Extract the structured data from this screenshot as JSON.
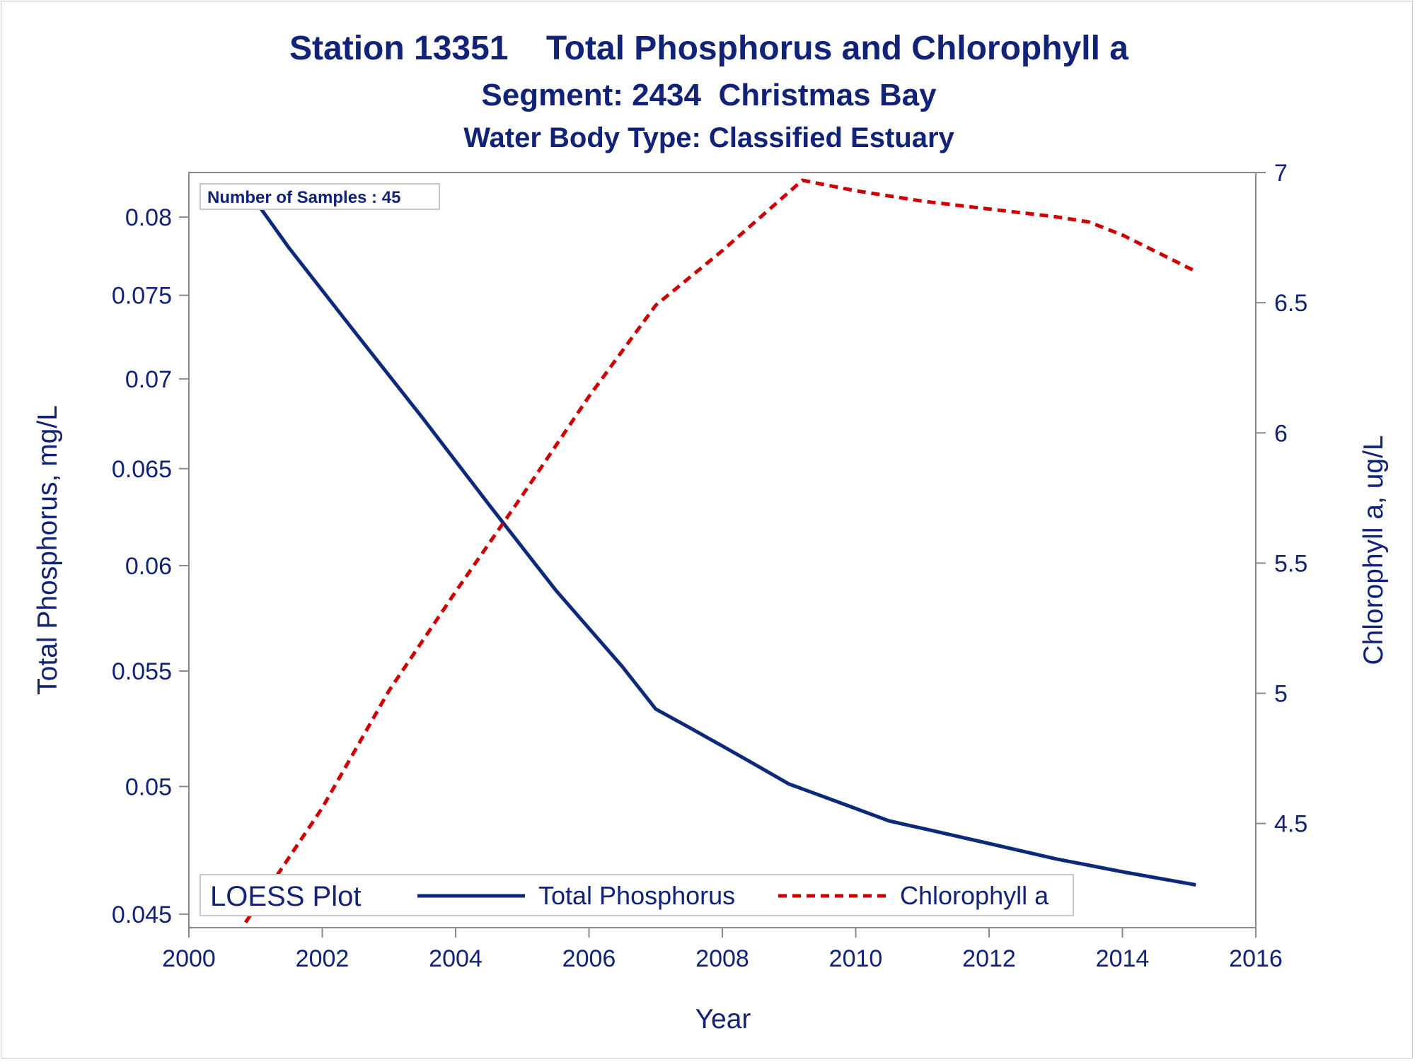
{
  "chart_data": {
    "type": "line",
    "title": "Station 13351    Total Phosphorus and Chlorophyll a",
    "subtitle": "Segment: 2434  Christmas Bay",
    "subtitle2": "Water Body Type: Classified Estuary",
    "xlabel": "Year",
    "ylabel_left": "Total Phosphorus, mg/L",
    "ylabel_right": "Chlorophyll a, ug/L",
    "xlim": [
      2000,
      2016
    ],
    "x_ticks": [
      2000,
      2002,
      2004,
      2006,
      2008,
      2010,
      2012,
      2014,
      2016
    ],
    "x_tick_labels": [
      "2000",
      "2002",
      "2004",
      "2006",
      "2008",
      "2010",
      "2012",
      "2014",
      "2016"
    ],
    "ylim_left": [
      0.0445,
      0.083
    ],
    "y_left_scale": "log",
    "y_left_ticks": [
      0.045,
      0.05,
      0.055,
      0.06,
      0.065,
      0.07,
      0.075,
      0.08
    ],
    "y_left_tick_labels": [
      "0.045",
      "0.05",
      "0.055",
      "0.06",
      "0.065",
      "0.07",
      "0.075",
      "0.08"
    ],
    "ylim_right": [
      4.1,
      7.0
    ],
    "y_right_ticks": [
      4.5,
      5,
      5.5,
      6,
      6.5,
      7
    ],
    "y_right_tick_labels": [
      "4.5",
      "5",
      "5.5",
      "6",
      "6.5",
      "7"
    ],
    "annotation": "Number of Samples : 45",
    "legend": {
      "title": "LOESS Plot",
      "placement": "bottom-inside",
      "entries": [
        "Total Phosphorus",
        "Chlorophyll a"
      ]
    },
    "grid": false,
    "series": [
      {
        "name": "Total Phosphorus",
        "axis": "left",
        "color": "#0d2a7a",
        "style": "solid",
        "x": [
          2000.85,
          2001.5,
          2002.5,
          2003.5,
          2004.5,
          2005.5,
          2006.5,
          2007.0,
          2007.5,
          2008.0,
          2008.5,
          2009.0,
          2009.5,
          2010.0,
          2010.5,
          2011.0,
          2012.0,
          2013.0,
          2014.0,
          2015.1
        ],
        "y": [
          0.082,
          0.078,
          0.0727,
          0.0678,
          0.0631,
          0.0588,
          0.0552,
          0.0533,
          0.0525,
          0.0517,
          0.0509,
          0.0501,
          0.0496,
          0.0491,
          0.0486,
          0.0483,
          0.0477,
          0.0471,
          0.0466,
          0.0461
        ]
      },
      {
        "name": "Chlorophyll a",
        "axis": "right",
        "color": "#cc0000",
        "style": "dashed",
        "x": [
          2000.85,
          2002.0,
          2003.0,
          2004.0,
          2005.0,
          2006.0,
          2007.0,
          2008.0,
          2009.2,
          2010.0,
          2011.0,
          2012.0,
          2013.0,
          2013.5,
          2014.0,
          2015.1
        ],
        "y": [
          4.12,
          4.56,
          5.01,
          5.39,
          5.76,
          6.14,
          6.49,
          6.7,
          6.97,
          6.93,
          6.89,
          6.86,
          6.83,
          6.81,
          6.76,
          6.62
        ]
      }
    ]
  }
}
